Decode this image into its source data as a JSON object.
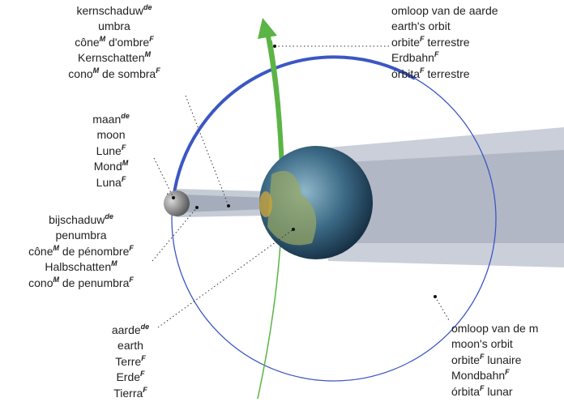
{
  "labels": [
    {
      "lines": [
        [
          "kernschaduw",
          {
            "sup": "de"
          }
        ],
        [
          "umbra"
        ],
        [
          "cône",
          {
            "sup": "M"
          },
          " d'ombre",
          {
            "sup": "F"
          }
        ],
        [
          "Kernschatten",
          {
            "sup": "M"
          }
        ],
        [
          "cono",
          {
            "sup": "M"
          },
          " de sombra",
          {
            "sup": "F"
          }
        ]
      ]
    },
    {
      "lines": [
        [
          "maan",
          {
            "sup": "de"
          }
        ],
        [
          "moon"
        ],
        [
          "Lune",
          {
            "sup": "F"
          }
        ],
        [
          "Mond",
          {
            "sup": "M"
          }
        ],
        [
          "Luna",
          {
            "sup": "F"
          }
        ]
      ]
    },
    {
      "lines": [
        [
          "bijschaduw",
          {
            "sup": "de"
          }
        ],
        [
          "penumbra"
        ],
        [
          "cône",
          {
            "sup": "M"
          },
          " de pénombre",
          {
            "sup": "F"
          }
        ],
        [
          "Halbschatten",
          {
            "sup": "M"
          }
        ],
        [
          "cono",
          {
            "sup": "M"
          },
          " de penumbra",
          {
            "sup": "F"
          }
        ]
      ]
    },
    {
      "lines": [
        [
          "aarde",
          {
            "sup": "de"
          }
        ],
        [
          "earth"
        ],
        [
          "Terre",
          {
            "sup": "F"
          }
        ],
        [
          "Erde",
          {
            "sup": "F"
          }
        ],
        [
          "Tierra",
          {
            "sup": "F"
          }
        ]
      ]
    },
    {
      "lines": [
        [
          "omloop van de aarde"
        ],
        [
          "earth's orbit"
        ],
        [
          "orbite",
          {
            "sup": "F"
          },
          " terrestre"
        ],
        [
          "Erdbahn",
          {
            "sup": "F"
          }
        ],
        [
          "órbita",
          {
            "sup": "F"
          },
          " terrestre"
        ]
      ]
    },
    {
      "lines": [
        [
          "omloop van de m"
        ],
        [
          "moon's orbit"
        ],
        [
          "orbite",
          {
            "sup": "F"
          },
          " lunaire"
        ],
        [
          "Mondbahn",
          {
            "sup": "F"
          }
        ],
        [
          "órbita",
          {
            "sup": "F"
          },
          " lunar"
        ]
      ]
    }
  ]
}
